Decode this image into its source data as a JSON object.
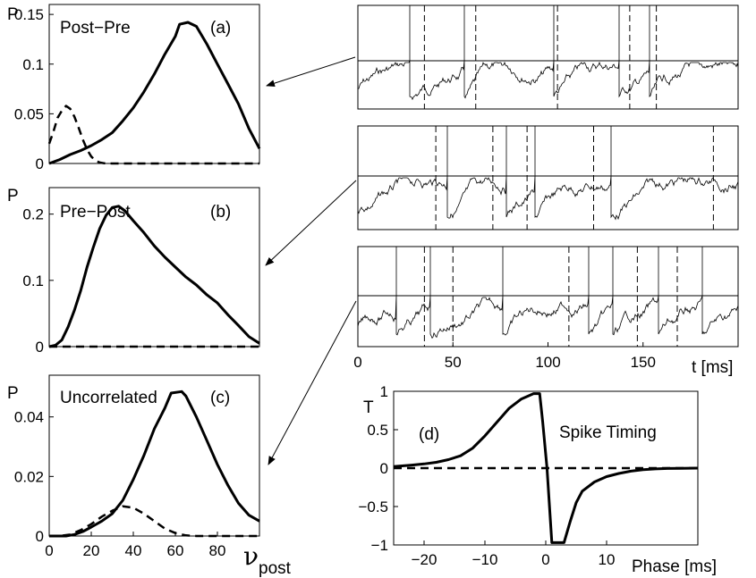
{
  "chart_data": [
    {
      "id": "a",
      "type": "line",
      "ylabel": "P",
      "annotation": "Post−Pre",
      "panel_label": "(a)",
      "xlim": [
        0,
        100
      ],
      "ylim": [
        0,
        0.16
      ],
      "yticks": [
        0,
        0.05,
        0.1,
        0.15
      ],
      "ytick_labels": [
        "0",
        "0.05",
        "0.1",
        "0.15"
      ],
      "series": [
        {
          "style": "solid",
          "x": [
            0,
            5,
            10,
            15,
            20,
            25,
            30,
            35,
            40,
            45,
            50,
            55,
            60,
            62,
            66,
            70,
            75,
            80,
            85,
            90,
            95,
            100
          ],
          "y": [
            0,
            0.004,
            0.009,
            0.013,
            0.018,
            0.024,
            0.031,
            0.043,
            0.056,
            0.072,
            0.09,
            0.11,
            0.128,
            0.14,
            0.142,
            0.138,
            0.12,
            0.1,
            0.08,
            0.06,
            0.035,
            0.015
          ]
        },
        {
          "style": "dashed",
          "x": [
            0,
            2,
            4,
            6,
            8,
            10,
            12,
            14,
            16,
            18,
            20,
            22,
            24,
            26,
            30,
            35,
            40,
            50,
            60,
            80,
            100
          ],
          "y": [
            0.02,
            0.032,
            0.046,
            0.053,
            0.058,
            0.055,
            0.047,
            0.036,
            0.024,
            0.014,
            0.007,
            0.003,
            0.001,
            0.0003,
            0,
            0,
            0,
            0,
            0,
            0,
            0
          ]
        }
      ]
    },
    {
      "id": "b",
      "type": "line",
      "ylabel": "P",
      "annotation": "Pre−Post",
      "panel_label": "(b)",
      "xlim": [
        0,
        100
      ],
      "ylim": [
        0,
        0.24
      ],
      "yticks": [
        0,
        0.1,
        0.2
      ],
      "ytick_labels": [
        "0",
        "0.1",
        "0.2"
      ],
      "series": [
        {
          "style": "solid",
          "x": [
            0,
            3,
            6,
            9,
            12,
            15,
            18,
            21,
            24,
            27,
            30,
            33,
            36,
            40,
            45,
            50,
            55,
            60,
            65,
            70,
            75,
            80,
            85,
            90,
            95,
            100
          ],
          "y": [
            0,
            0.002,
            0.01,
            0.03,
            0.055,
            0.085,
            0.12,
            0.15,
            0.178,
            0.198,
            0.21,
            0.212,
            0.205,
            0.19,
            0.172,
            0.152,
            0.135,
            0.12,
            0.105,
            0.093,
            0.078,
            0.066,
            0.048,
            0.032,
            0.015,
            0.005
          ]
        },
        {
          "style": "dashed",
          "x": [
            0,
            100
          ],
          "y": [
            0,
            0
          ]
        }
      ]
    },
    {
      "id": "c",
      "type": "line",
      "ylabel": "P",
      "annotation": "Uncorrelated",
      "panel_label": "(c)",
      "xlabel": "ν",
      "xlabel_sub": "post",
      "xlim": [
        0,
        100
      ],
      "ylim": [
        0,
        0.054
      ],
      "xticks": [
        0,
        20,
        40,
        60,
        80
      ],
      "xtick_labels": [
        "0",
        "20",
        "40",
        "60",
        "80"
      ],
      "yticks": [
        0,
        0.02,
        0.04
      ],
      "ytick_labels": [
        "0",
        "0.02",
        "0.04"
      ],
      "series": [
        {
          "style": "solid",
          "x": [
            0,
            8,
            12,
            16,
            20,
            25,
            30,
            35,
            40,
            45,
            50,
            55,
            58,
            63,
            65,
            70,
            75,
            80,
            85,
            90,
            95,
            100
          ],
          "y": [
            0,
            0,
            0.0005,
            0.0015,
            0.003,
            0.005,
            0.0075,
            0.012,
            0.019,
            0.027,
            0.036,
            0.043,
            0.048,
            0.0485,
            0.047,
            0.04,
            0.032,
            0.024,
            0.017,
            0.011,
            0.007,
            0.005
          ]
        },
        {
          "style": "dashed",
          "x": [
            0,
            5,
            10,
            15,
            20,
            25,
            30,
            35,
            40,
            45,
            50,
            55,
            60,
            65,
            70,
            80,
            90,
            100
          ],
          "y": [
            0,
            0,
            0.0005,
            0.002,
            0.004,
            0.0065,
            0.0085,
            0.01,
            0.0095,
            0.0075,
            0.005,
            0.0025,
            0.001,
            0.0002,
            0,
            0,
            0,
            0
          ]
        }
      ]
    },
    {
      "id": "d",
      "type": "line",
      "ylabel": "T",
      "annotation": "Spike Timing",
      "panel_label": "(d)",
      "xlabel": "Phase [ms]",
      "xlim": [
        -25,
        25
      ],
      "ylim": [
        -1,
        1
      ],
      "xticks": [
        -20,
        -10,
        0,
        10
      ],
      "xtick_labels": [
        "−20",
        "−10",
        "0",
        "10"
      ],
      "yticks": [
        -1,
        -0.5,
        0,
        0.5,
        1
      ],
      "ytick_labels": [
        "−1",
        "−0.5",
        "0",
        "0.5",
        "1"
      ],
      "series": [
        {
          "style": "solid",
          "x": [
            -25,
            -22,
            -20,
            -18,
            -16,
            -14,
            -12,
            -10,
            -8,
            -6,
            -4,
            -2,
            -1,
            -0.5,
            0.2,
            1,
            3,
            4,
            5,
            6,
            8,
            10,
            12,
            14,
            16,
            18,
            20,
            25
          ],
          "y": [
            0.02,
            0.04,
            0.055,
            0.075,
            0.11,
            0.16,
            0.26,
            0.42,
            0.6,
            0.78,
            0.9,
            0.97,
            0.97,
            0.6,
            0,
            -0.97,
            -0.97,
            -0.7,
            -0.45,
            -0.3,
            -0.18,
            -0.11,
            -0.07,
            -0.04,
            -0.02,
            -0.01,
            -0.005,
            0
          ]
        },
        {
          "style": "dashed",
          "x": [
            -25,
            25
          ],
          "y": [
            0,
            0
          ]
        }
      ]
    },
    {
      "id": "traces",
      "type": "line",
      "xlabel": "t [ms]",
      "xlim": [
        0,
        200
      ],
      "xticks": [
        0,
        50,
        100,
        150
      ],
      "xtick_labels": [
        "0",
        "50",
        "100",
        "150"
      ]
    }
  ]
}
